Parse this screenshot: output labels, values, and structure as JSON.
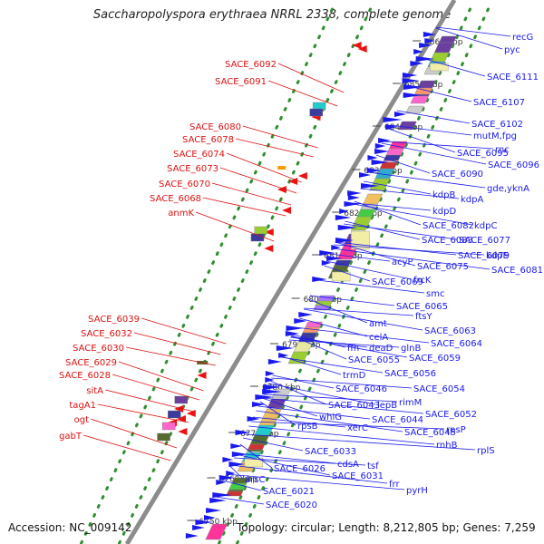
{
  "title": "Saccharopolyspora erythraea NRRL 2338, complete genome",
  "accession": "Accession: NC_009142",
  "topology": "Topology: circular; Length: 8,212,805 bp; Genes: 7,259",
  "colors": {
    "backbone": "#8c8c8c",
    "gc_dots": "#2f8f2f",
    "forward_genes": "#1a1aee",
    "reverse_genes": "#ee1111",
    "label_forward": "#1a1aee",
    "label_reverse": "#dd1111"
  },
  "kbp_ticks": [
    "6750 kbp",
    "6760 kbp",
    "6770 kbp",
    "6780 kbp",
    "6790 kbp",
    "6800 kbp",
    "6810 kbp",
    "6820 kbp",
    "6830 kbp",
    "6840 kbp",
    "6850 kbp",
    "6860 kbp"
  ],
  "forward_gene_labels": [
    "recG",
    "pyc",
    "SACE_6111",
    "SACE_6107",
    "SACE_6102",
    "mutM,fpg",
    "rnc",
    "SACE_6095",
    "SACE_6096",
    "SACE_6090",
    "gde,yknA",
    "kdpB",
    "kdpA",
    "kdpD",
    "SACE_6082",
    "kdpC",
    "SACE_6083",
    "SACE_6077",
    "SACE_6079",
    "kdpE",
    "acyP",
    "SACE_6075",
    "SACE_6081",
    "frcK",
    "SACE_6069",
    "smc",
    "SACE_6065",
    "ftsY",
    "amt",
    "SACE_6063",
    "celA",
    "SACE_6064",
    "ffh",
    "deaD",
    "glnB",
    "SACE_6055",
    "SACE_6059",
    "trmD",
    "SACE_6056",
    "SACE_6046",
    "SACE_6054",
    "rimM",
    "SACE_6043",
    "lepB",
    "whiG",
    "SACE_6052",
    "SACE_6044",
    "xerC",
    "rpsP",
    "rpsB",
    "SACE_6045",
    "rnhB",
    "rplS",
    "SACE_6033",
    "cdsA",
    "tsf",
    "SACE_6026",
    "SACE_6031",
    "frr",
    "pyrH",
    "arsC",
    "SACE_6021",
    "SACE_6020"
  ],
  "reverse_gene_labels": [
    "SACE_6092",
    "SACE_6091",
    "SACE_6080",
    "SACE_6078",
    "SACE_6074",
    "SACE_6073",
    "SACE_6070",
    "SACE_6068",
    "anmK",
    "SACE_6039",
    "SACE_6032",
    "SACE_6030",
    "SACE_6029",
    "SACE_6028",
    "sitA",
    "tagA1",
    "ogt",
    "gabT"
  ]
}
